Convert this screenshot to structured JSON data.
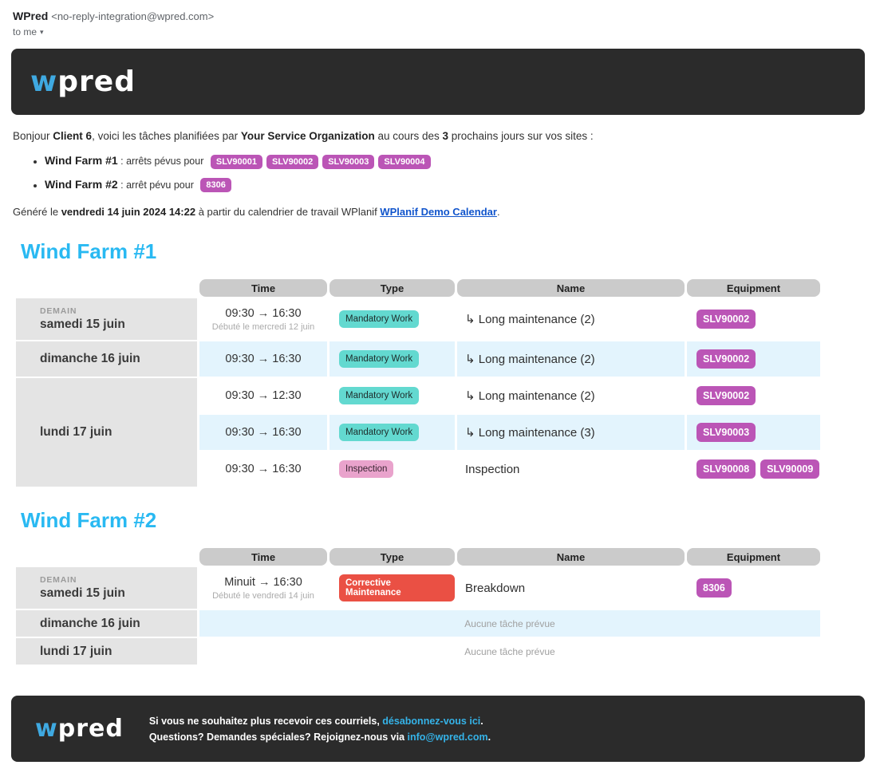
{
  "gmail": {
    "sender_name": "WPred",
    "sender_email": "<no-reply-integration@wpred.com>",
    "to_label": "to me",
    "caret": "▾"
  },
  "logo": {
    "first": "w",
    "rest": "pred"
  },
  "intro": {
    "p1": "Bonjour ",
    "client": "Client 6",
    "p2": ", voici les tâches planifiées par ",
    "org": "Your Service Organization",
    "p3": " au cours des ",
    "days": "3",
    "p4": " prochains jours sur vos sites :"
  },
  "summary": [
    {
      "site": "Wind Farm #1",
      "text": ": arrêts pévus pour",
      "badges": [
        "SLV90001",
        "SLV90002",
        "SLV90003",
        "SLV90004"
      ]
    },
    {
      "site": "Wind Farm #2",
      "text": ": arrêt pévu pour",
      "badges": [
        "8306"
      ]
    }
  ],
  "generated": {
    "p1": "Généré le ",
    "date": "vendredi 14 juin 2024 14:22",
    "p2": " à partir du calendrier de travail WPlanif ",
    "link": "WPlanif Demo Calendar",
    "p3": "."
  },
  "table_headers": {
    "time": "Time",
    "type": "Type",
    "name": "Name",
    "equipment": "Equipment"
  },
  "farm1": {
    "title": "Wind Farm #1",
    "rows": [
      {
        "day_tag": "DEMAIN",
        "date": "samedi 15 juin",
        "time": "09:30 → 16:30",
        "time_note": "Débuté le mercredi 12 juin",
        "type": "Mandatory Work",
        "name": "↳ Long maintenance (2)",
        "equipment": [
          "SLV90002"
        ]
      },
      {
        "date": "dimanche 16 juin",
        "time": "09:30 → 16:30",
        "type": "Mandatory Work",
        "name": "↳ Long maintenance (2)",
        "equipment": [
          "SLV90002"
        ]
      },
      {
        "date": "lundi 17 juin",
        "time": "09:30 → 12:30",
        "type": "Mandatory Work",
        "name": "↳ Long maintenance (2)",
        "equipment": [
          "SLV90002"
        ]
      },
      {
        "time": "09:30 → 16:30",
        "type": "Mandatory Work",
        "name": "↳ Long maintenance (3)",
        "equipment": [
          "SLV90003"
        ]
      },
      {
        "time": "09:30 → 16:30",
        "type": "Inspection",
        "name": "Inspection",
        "equipment": [
          "SLV90008",
          "SLV90009"
        ]
      }
    ]
  },
  "farm2": {
    "title": "Wind Farm #2",
    "rows": [
      {
        "day_tag": "DEMAIN",
        "date": "samedi 15 juin",
        "time": "Minuit → 16:30",
        "time_note": "Débuté le vendredi 14 juin",
        "type": "Corrective Maintenance",
        "name": "Breakdown",
        "equipment": [
          "8306"
        ]
      },
      {
        "date": "dimanche 16 juin",
        "empty": "Aucune tâche prévue"
      },
      {
        "date": "lundi 17 juin",
        "empty": "Aucune tâche prévue"
      }
    ]
  },
  "footer": {
    "line1_pre": "Si vous ne souhaitez plus recevoir ces courriels, ",
    "line1_link": "désabonnez-vous ici",
    "line1_post": ".",
    "line2_pre": "Questions? Demandes spéciales? Rejoignez-nous via ",
    "line2_link": "info@wpred.com",
    "line2_post": "."
  },
  "colors": {
    "banner_bg": "#2b2b2b",
    "logo_blue": "#3fa9e1",
    "heading_cyan": "#29b9f2",
    "link_blue": "#1155cc",
    "badge_equipment": "#bb55b6",
    "badge_mandatory_work": "#63d9d0",
    "badge_inspection": "#e9a3cc",
    "badge_corrective_maintenance": "#ea5044",
    "row_alt_blue": "#e3f4fd",
    "date_cell_gray": "#e4e4e4",
    "header_pill_gray": "#cbcbcb",
    "footer_link_cyan": "#35b3e8"
  }
}
